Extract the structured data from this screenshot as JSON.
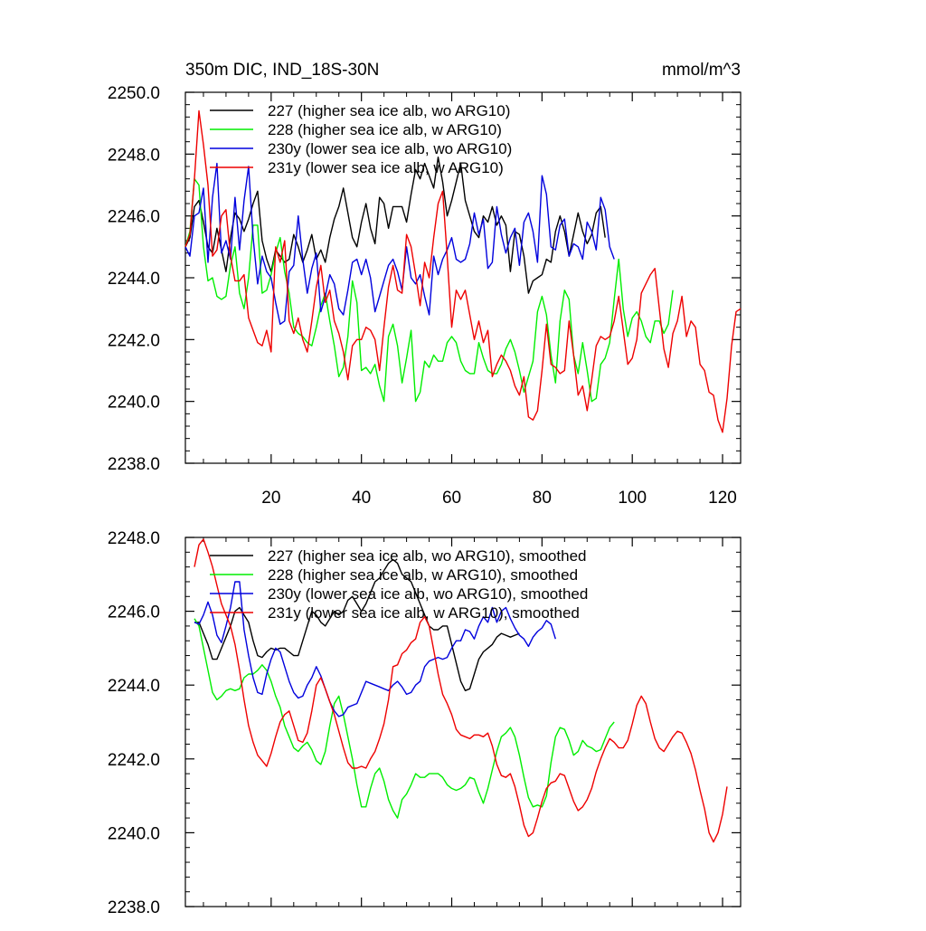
{
  "chart_data": [
    {
      "type": "line",
      "title": "350m DIC, IND_18S-30N",
      "units": "mmol/m^3",
      "xlim": [
        1,
        124
      ],
      "ylim": [
        2238.0,
        2250.0
      ],
      "xticks": [
        20,
        40,
        60,
        80,
        100,
        120
      ],
      "xtick_labels": [
        "20",
        "40",
        "60",
        "80",
        "100",
        "120"
      ],
      "yticks": [
        2238,
        2240,
        2242,
        2244,
        2246,
        2248,
        2250
      ],
      "ytick_labels": [
        "2238.0",
        "2240.0",
        "2242.0",
        "2244.0",
        "2246.0",
        "2248.0",
        "2250.0"
      ],
      "series": [
        {
          "name": "227 (higher sea ice alb, wo ARG10)",
          "color": "#000000",
          "start_x": 1,
          "values": [
            2245.0,
            2245.3,
            2246.3,
            2246.5,
            2245.8,
            2245.0,
            2244.8,
            2245.6,
            2244.9,
            2244.2,
            2245.3,
            2246.1,
            2245.9,
            2245.5,
            2245.9,
            2246.4,
            2246.8,
            2245.2,
            2244.6,
            2244.2,
            2244.9,
            2244.7,
            2244.5,
            2244.6,
            2245.4,
            2245.0,
            2244.5,
            2244.9,
            2245.4,
            2244.6,
            2244.9,
            2244.5,
            2245.3,
            2245.9,
            2246.3,
            2246.9,
            2246.1,
            2245.3,
            2245.0,
            2245.8,
            2246.4,
            2245.6,
            2245.1,
            2246.6,
            2246.4,
            2245.6,
            2246.3,
            2246.3,
            2246.3,
            2245.8,
            2246.7,
            2247.5,
            2247.2,
            2247.7,
            2247.3,
            2246.9,
            2247.9,
            2247.1,
            2246.0,
            2246.5,
            2247.1,
            2247.7,
            2246.5,
            2246.0,
            2245.5,
            2245.3,
            2246.0,
            2245.8,
            2246.3,
            2245.7,
            2246.0,
            2245.7,
            2244.2,
            2245.5,
            2245.4,
            2244.7,
            2243.5,
            2243.9,
            2244.0,
            2244.1,
            2244.6,
            2244.5,
            2245.5,
            2246.0,
            2245.5,
            2244.7,
            2245.4,
            2246.1,
            2245.5,
            2245.1,
            2245.4,
            2246.1,
            2246.3,
            2245.3
          ]
        },
        {
          "name": "228 (higher sea ice alb, w ARG10)",
          "color": "#00ee00",
          "start_x": 1,
          "values": [
            2245.0,
            2245.5,
            2247.2,
            2247.0,
            2245.0,
            2243.9,
            2244.0,
            2243.4,
            2243.3,
            2243.4,
            2244.4,
            2245.0,
            2243.5,
            2243.0,
            2244.0,
            2245.7,
            2245.7,
            2243.5,
            2243.6,
            2244.1,
            2244.8,
            2245.3,
            2244.2,
            2243.5,
            2242.4,
            2242.2,
            2242.1,
            2241.9,
            2241.8,
            2242.4,
            2243.1,
            2243.5,
            2242.6,
            2241.8,
            2240.8,
            2241.1,
            2242.1,
            2243.9,
            2243.2,
            2241.0,
            2241.1,
            2240.9,
            2241.2,
            2240.5,
            2240.0,
            2242.1,
            2242.5,
            2241.8,
            2240.6,
            2241.4,
            2242.3,
            2240.0,
            2240.3,
            2241.3,
            2241.1,
            2241.5,
            2241.3,
            2241.3,
            2241.9,
            2242.1,
            2241.9,
            2241.3,
            2241.0,
            2240.9,
            2240.9,
            2241.9,
            2241.4,
            2241.0,
            2240.9,
            2240.9,
            2241.2,
            2241.7,
            2242.0,
            2241.6,
            2241.0,
            2240.3,
            2240.8,
            2241.3,
            2242.9,
            2243.4,
            2242.8,
            2241.5,
            2240.6,
            2242.6,
            2243.6,
            2243.3,
            2241.5,
            2240.9,
            2241.9,
            2241.0,
            2240.0,
            2240.1,
            2241.2,
            2241.4,
            2241.9,
            2243.3,
            2244.6,
            2243.0,
            2242.1,
            2242.7,
            2242.9,
            2242.6,
            2242.1,
            2241.9,
            2242.6,
            2242.6,
            2242.2,
            2242.5,
            2243.6
          ]
        },
        {
          "name": "230y (lower sea ice alb, wo ARG10)",
          "color": "#0000dd",
          "start_x": 1,
          "values": [
            2245.0,
            2244.7,
            2246.0,
            2246.1,
            2246.9,
            2244.5,
            2246.6,
            2247.7,
            2244.8,
            2245.2,
            2244.6,
            2246.6,
            2244.9,
            2246.5,
            2247.6,
            2245.3,
            2243.8,
            2244.7,
            2244.2,
            2244.0,
            2243.2,
            2242.5,
            2242.6,
            2244.2,
            2244.4,
            2246.0,
            2244.6,
            2243.5,
            2244.3,
            2244.8,
            2242.9,
            2243.4,
            2244.1,
            2243.8,
            2243.0,
            2242.8,
            2243.6,
            2244.5,
            2244.6,
            2244.1,
            2244.6,
            2244.0,
            2242.9,
            2243.4,
            2243.9,
            2244.4,
            2244.6,
            2244.2,
            2243.6,
            2245.0,
            2244.0,
            2243.8,
            2244.1,
            2243.4,
            2242.8,
            2244.7,
            2244.1,
            2244.6,
            2244.9,
            2245.3,
            2244.6,
            2244.5,
            2244.6,
            2245.1,
            2246.1,
            2245.4,
            2245.9,
            2244.3,
            2244.5,
            2246.3,
            2245.4,
            2244.8,
            2245.3,
            2245.6,
            2244.4,
            2245.8,
            2246.1,
            2245.5,
            2244.5,
            2247.3,
            2246.7,
            2245.0,
            2244.9,
            2245.7,
            2245.9,
            2244.7,
            2245.1,
            2245.0,
            2244.6,
            2245.8,
            2245.5,
            2244.9,
            2246.6,
            2246.2,
            2245.0,
            2244.6
          ]
        },
        {
          "name": "231y (lower sea ice alb, w ARG10)",
          "color": "#ee0000",
          "start_x": 1,
          "values": [
            2245.0,
            2245.4,
            2247.2,
            2249.4,
            2248.3,
            2247.0,
            2244.7,
            2244.9,
            2246.0,
            2246.2,
            2244.7,
            2243.9,
            2243.9,
            2244.1,
            2242.7,
            2242.3,
            2241.9,
            2241.8,
            2242.3,
            2241.6,
            2245.0,
            2244.5,
            2245.2,
            2242.6,
            2242.2,
            2242.7,
            2242.0,
            2241.6,
            2242.6,
            2243.7,
            2244.4,
            2243.2,
            2243.6,
            2242.6,
            2242.2,
            2241.6,
            2240.7,
            2241.8,
            2242.0,
            2242.0,
            2242.4,
            2242.3,
            2242.0,
            2241.0,
            2242.4,
            2243.7,
            2244.4,
            2243.6,
            2243.5,
            2245.4,
            2245.0,
            2244.1,
            2243.1,
            2244.5,
            2244.0,
            2245.3,
            2246.4,
            2246.8,
            2244.7,
            2242.4,
            2243.6,
            2243.3,
            2243.6,
            2242.8,
            2242.0,
            2242.6,
            2241.9,
            2242.3,
            2240.8,
            2241.2,
            2241.5,
            2241.3,
            2241.0,
            2240.5,
            2240.2,
            2240.8,
            2239.5,
            2239.4,
            2239.7,
            2241.0,
            2242.5,
            2241.2,
            2241.1,
            2240.9,
            2241.0,
            2242.6,
            2241.5,
            2240.2,
            2240.5,
            2239.7,
            2240.7,
            2241.8,
            2242.1,
            2242.0,
            2242.1,
            2242.6,
            2243.4,
            2242.3,
            2241.2,
            2241.4,
            2242.0,
            2243.5,
            2243.8,
            2244.1,
            2244.3,
            2243.0,
            2241.7,
            2241.1,
            2242.2,
            2242.6,
            2243.4,
            2242.1,
            2242.6,
            2242.4,
            2241.2,
            2241.0,
            2240.3,
            2240.2,
            2239.4,
            2239.0,
            2240.1,
            2241.8,
            2242.9,
            2243.0
          ]
        }
      ],
      "legend": "top-left"
    },
    {
      "type": "line",
      "title": "",
      "units": "",
      "xlim": [
        1,
        124
      ],
      "ylim": [
        2238.0,
        2248.0
      ],
      "xticks": [
        20,
        40,
        60,
        80,
        100,
        120
      ],
      "xtick_labels": [],
      "yticks": [
        2238,
        2240,
        2242,
        2244,
        2246,
        2248
      ],
      "ytick_labels": [
        "2238.0",
        "2240.0",
        "2242.0",
        "2244.0",
        "2246.0",
        "2248.0"
      ],
      "series": [
        {
          "name": "227 (higher sea ice alb, wo ARG10), smoothed",
          "color": "#000000",
          "start_x": 3,
          "values": [
            2245.7,
            2245.7,
            2245.4,
            2245.1,
            2244.7,
            2244.7,
            2245.0,
            2245.3,
            2245.6,
            2246.0,
            2246.1,
            2245.9,
            2245.7,
            2245.2,
            2244.8,
            2244.75,
            2244.9,
            2245.0,
            2244.95,
            2245.0,
            2245.0,
            2244.9,
            2244.8,
            2244.8,
            2245.2,
            2245.6,
            2246.0,
            2245.9,
            2245.7,
            2245.6,
            2245.8,
            2246.0,
            2245.9,
            2246.0,
            2246.3,
            2246.4,
            2246.2,
            2246.0,
            2246.2,
            2246.5,
            2246.8,
            2246.9,
            2247.1,
            2247.3,
            2247.4,
            2247.3,
            2247.0,
            2246.9,
            2246.8,
            2246.5,
            2246.2,
            2245.9,
            2245.6,
            2245.5,
            2245.5,
            2245.6,
            2245.6,
            2245.1,
            2244.6,
            2244.1,
            2243.85,
            2243.9,
            2244.3,
            2244.7,
            2244.9,
            2245.0,
            2245.1,
            2245.3,
            2245.4,
            2245.35,
            2245.3,
            2245.35,
            2245.4
          ]
        },
        {
          "name": "228 (higher sea ice alb, w ARG10), smoothed",
          "color": "#00ee00",
          "start_x": 3,
          "values": [
            2245.8,
            2245.6,
            2245.0,
            2244.4,
            2243.8,
            2243.6,
            2243.7,
            2243.85,
            2243.9,
            2243.85,
            2243.9,
            2244.2,
            2244.3,
            2244.3,
            2244.4,
            2244.55,
            2244.4,
            2244.1,
            2243.7,
            2243.4,
            2242.9,
            2242.6,
            2242.3,
            2242.2,
            2242.35,
            2242.45,
            2242.25,
            2241.95,
            2241.85,
            2242.2,
            2242.9,
            2243.5,
            2243.7,
            2243.2,
            2242.6,
            2242.0,
            2241.3,
            2240.7,
            2240.7,
            2241.2,
            2241.6,
            2241.75,
            2241.4,
            2240.9,
            2240.6,
            2240.4,
            2240.9,
            2241.05,
            2241.3,
            2241.6,
            2241.5,
            2241.5,
            2241.6,
            2241.6,
            2241.6,
            2241.5,
            2241.3,
            2241.2,
            2241.15,
            2241.2,
            2241.3,
            2241.5,
            2241.45,
            2241.1,
            2240.8,
            2241.2,
            2241.7,
            2242.2,
            2242.6,
            2242.7,
            2242.85,
            2242.6,
            2242.1,
            2241.5,
            2240.95,
            2240.7,
            2240.75,
            2240.7,
            2241.0,
            2241.9,
            2242.6,
            2242.85,
            2242.8,
            2242.5,
            2242.1,
            2242.2,
            2242.5,
            2242.35,
            2242.3,
            2242.2,
            2242.25,
            2242.55,
            2242.85,
            2243.0
          ]
        },
        {
          "name": "230y (lower sea ice alb, wo ARG10), smoothed",
          "color": "#0000dd",
          "start_x": 3,
          "values": [
            2245.7,
            2245.65,
            2245.9,
            2246.25,
            2245.9,
            2245.35,
            2245.15,
            2245.6,
            2246.1,
            2246.8,
            2246.8,
            2245.5,
            2244.8,
            2244.2,
            2243.8,
            2243.75,
            2244.3,
            2244.7,
            2245.0,
            2244.9,
            2244.5,
            2244.1,
            2243.8,
            2243.65,
            2243.7,
            2244.0,
            2244.2,
            2244.5,
            2244.25,
            2243.9,
            2243.55,
            2243.3,
            2243.15,
            2243.2,
            2243.4,
            2243.45,
            2243.5,
            2243.8,
            2244.1,
            2244.05,
            2244.0,
            2243.95,
            2243.9,
            2243.85,
            2244.0,
            2244.1,
            2243.95,
            2243.75,
            2243.8,
            2244.0,
            2244.1,
            2244.5,
            2244.65,
            2244.7,
            2244.75,
            2244.7,
            2244.75,
            2245.0,
            2245.2,
            2245.2,
            2245.5,
            2245.45,
            2245.25,
            2245.6,
            2245.85,
            2245.7,
            2246.1,
            2245.7,
            2246.0,
            2246.1,
            2245.8,
            2245.55,
            2245.35,
            2245.25,
            2245.05,
            2245.3,
            2245.45,
            2245.55,
            2245.75,
            2245.65,
            2245.25
          ]
        },
        {
          "name": "231y (lower sea ice alb, w ARG10), smoothed",
          "color": "#ee0000",
          "start_x": 3,
          "values": [
            2247.2,
            2247.8,
            2247.95,
            2247.6,
            2247.2,
            2246.7,
            2246.2,
            2245.9,
            2245.6,
            2245.1,
            2244.4,
            2243.6,
            2242.9,
            2242.45,
            2242.1,
            2241.95,
            2241.8,
            2242.15,
            2242.6,
            2243.0,
            2243.2,
            2243.3,
            2242.9,
            2242.5,
            2242.45,
            2242.7,
            2243.3,
            2244.0,
            2244.2,
            2243.9,
            2243.55,
            2243.2,
            2242.75,
            2242.3,
            2241.9,
            2241.75,
            2241.75,
            2241.8,
            2241.75,
            2242.0,
            2242.2,
            2242.55,
            2242.95,
            2243.6,
            2244.5,
            2244.55,
            2244.85,
            2244.95,
            2245.15,
            2245.25,
            2245.7,
            2245.85,
            2245.6,
            2244.95,
            2244.3,
            2243.75,
            2243.5,
            2243.2,
            2242.8,
            2242.65,
            2242.6,
            2242.55,
            2242.65,
            2242.65,
            2242.6,
            2242.7,
            2242.35,
            2241.85,
            2241.55,
            2241.5,
            2241.6,
            2241.25,
            2240.75,
            2240.2,
            2239.9,
            2240.0,
            2240.4,
            2240.85,
            2241.2,
            2241.35,
            2241.4,
            2241.6,
            2241.55,
            2241.2,
            2240.85,
            2240.6,
            2240.7,
            2240.9,
            2241.2,
            2241.65,
            2242.0,
            2242.3,
            2242.55,
            2242.45,
            2242.3,
            2242.3,
            2242.5,
            2242.95,
            2243.45,
            2243.7,
            2243.5,
            2243.0,
            2242.55,
            2242.3,
            2242.2,
            2242.4,
            2242.6,
            2242.75,
            2242.7,
            2242.45,
            2242.15,
            2241.7,
            2241.15,
            2240.65,
            2240.0,
            2239.75,
            2240.0,
            2240.5,
            2241.25
          ]
        }
      ],
      "legend": "top-left"
    }
  ]
}
